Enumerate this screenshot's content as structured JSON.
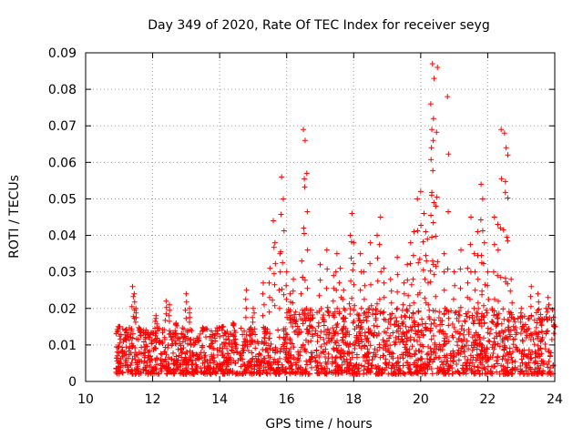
{
  "chart_data": {
    "type": "scatter",
    "title": "Day 349 of 2020, Rate Of TEC Index for receiver seyg",
    "xlabel": "GPS time / hours",
    "ylabel": "ROTI / TECUs",
    "xlim": [
      10,
      24
    ],
    "ylim": [
      0,
      0.09
    ],
    "x_ticks": [
      10,
      12,
      14,
      16,
      18,
      20,
      22,
      24
    ],
    "x_tick_labels": [
      "10",
      "12",
      "14",
      "16",
      "18",
      "20",
      "22",
      "24"
    ],
    "y_ticks": [
      0,
      0.01,
      0.02,
      0.03,
      0.04,
      0.05,
      0.06,
      0.07,
      0.08,
      0.09
    ],
    "y_tick_labels": [
      "0",
      "0.01",
      "0.02",
      "0.03",
      "0.04",
      "0.05",
      "0.06",
      "0.07",
      "0.08",
      "0.09"
    ],
    "grid": true,
    "marker": "plus",
    "color": "#ff0000",
    "series": [
      {
        "name": "ROTI",
        "x": [
          11.0,
          11.2,
          11.4,
          11.45,
          11.5,
          11.6,
          12.1,
          12.4,
          12.5,
          12.7,
          13.0,
          13.1,
          13.5,
          14.1,
          14.4,
          14.8,
          15.0,
          15.3,
          15.5,
          15.6,
          15.65,
          15.8,
          15.85,
          15.9,
          16.0,
          16.1,
          16.2,
          16.45,
          16.5,
          16.55,
          16.6,
          17.0,
          17.2,
          17.4,
          17.5,
          17.6,
          17.7,
          17.9,
          17.95,
          18.0,
          18.2,
          18.3,
          18.5,
          18.7,
          18.8,
          18.9,
          19.1,
          19.3,
          19.5,
          19.6,
          19.7,
          19.8,
          19.9,
          20.0,
          20.1,
          20.15,
          20.2,
          20.3,
          20.32,
          20.35,
          20.38,
          20.4,
          20.45,
          20.5,
          20.7,
          20.8,
          21.0,
          21.2,
          21.4,
          21.5,
          21.6,
          21.7,
          21.8,
          21.85,
          21.9,
          22.0,
          22.2,
          22.3,
          22.4,
          22.5,
          22.55,
          22.6,
          22.7,
          23.0,
          23.3,
          23.5,
          23.6,
          23.8,
          24.0
        ],
        "y": [
          0.015,
          0.012,
          0.026,
          0.024,
          0.02,
          0.014,
          0.018,
          0.022,
          0.021,
          0.016,
          0.024,
          0.02,
          0.014,
          0.015,
          0.016,
          0.025,
          0.02,
          0.027,
          0.031,
          0.044,
          0.038,
          0.035,
          0.056,
          0.05,
          0.03,
          0.024,
          0.028,
          0.033,
          0.069,
          0.066,
          0.057,
          0.032,
          0.036,
          0.029,
          0.035,
          0.031,
          0.025,
          0.04,
          0.046,
          0.038,
          0.035,
          0.03,
          0.038,
          0.04,
          0.045,
          0.031,
          0.028,
          0.034,
          0.027,
          0.032,
          0.038,
          0.041,
          0.05,
          0.052,
          0.046,
          0.041,
          0.039,
          0.076,
          0.064,
          0.087,
          0.072,
          0.083,
          0.048,
          0.086,
          0.035,
          0.078,
          0.03,
          0.036,
          0.031,
          0.045,
          0.035,
          0.041,
          0.054,
          0.05,
          0.038,
          0.03,
          0.045,
          0.043,
          0.069,
          0.068,
          0.064,
          0.062,
          0.028,
          0.02,
          0.026,
          0.024,
          0.017,
          0.023,
          0.015
        ],
        "background_band": [
          {
            "hours": [
              10.9,
              16.0
            ],
            "low": 0.002,
            "high": 0.015
          },
          {
            "hours": [
              16.0,
              24.0
            ],
            "low": 0.002,
            "high": 0.02
          }
        ]
      }
    ]
  }
}
